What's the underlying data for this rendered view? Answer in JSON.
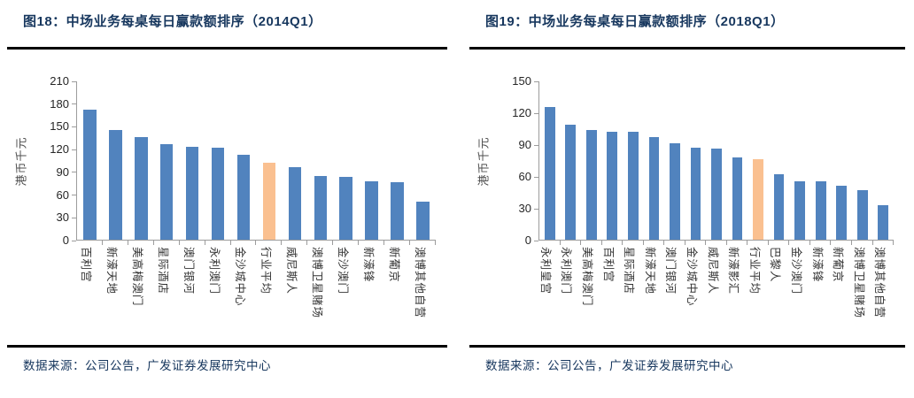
{
  "colors": {
    "bar": "#5183BE",
    "highlight": "#FAC090",
    "title_text": "#17375E",
    "axis": "#9C9C9C",
    "rule": "#000000"
  },
  "panels": [
    {
      "title": "图18：中场业务每桌每日赢款额排序（2014Q1）",
      "source": "数据来源：公司公告，广发证券发展研究中心"
    },
    {
      "title": "图19：中场业务每桌每日赢款额排序（2018Q1）",
      "source": "数据来源：公司公告，广发证券发展研究中心"
    }
  ],
  "chart_data": [
    {
      "type": "bar",
      "title": "图18：中场业务每桌每日赢款额排序（2014Q1）",
      "xlabel": "",
      "ylabel": "港币千元",
      "ylim": [
        0,
        210
      ],
      "yticks": [
        0,
        30,
        60,
        90,
        120,
        150,
        180,
        210
      ],
      "grid": false,
      "legend": false,
      "categories": [
        "百利宫",
        "新濠天地",
        "美高梅澳门",
        "星际酒店",
        "澳门银河",
        "永利澳门",
        "金沙城中心",
        "行业平均",
        "威尼斯人",
        "澳博卫星赌场",
        "金沙澳门",
        "新濠锋",
        "新葡京",
        "澳博其他自营"
      ],
      "values": [
        173,
        145,
        136,
        127,
        123,
        122,
        113,
        102,
        96,
        84,
        83,
        77,
        76,
        50
      ],
      "highlight_category": "行业平均"
    },
    {
      "type": "bar",
      "title": "图19：中场业务每桌每日赢款额排序（2018Q1）",
      "xlabel": "",
      "ylabel": "港币千元",
      "ylim": [
        0,
        150
      ],
      "yticks": [
        0,
        30,
        60,
        90,
        120,
        150
      ],
      "grid": false,
      "legend": false,
      "categories": [
        "永利皇宫",
        "永利澳门",
        "美高梅澳门",
        "百利宫",
        "星际酒店",
        "新濠天地",
        "澳门银河",
        "金沙城中心",
        "威尼斯人",
        "新濠影汇",
        "行业平均",
        "巴黎人",
        "金沙澳门",
        "新濠锋",
        "新葡京",
        "澳博卫星赌场",
        "澳博其他自营"
      ],
      "values": [
        126,
        109,
        104,
        102,
        102,
        97,
        91,
        87,
        86,
        78,
        76,
        62,
        55,
        55,
        51,
        47,
        33
      ],
      "highlight_category": "行业平均"
    }
  ]
}
